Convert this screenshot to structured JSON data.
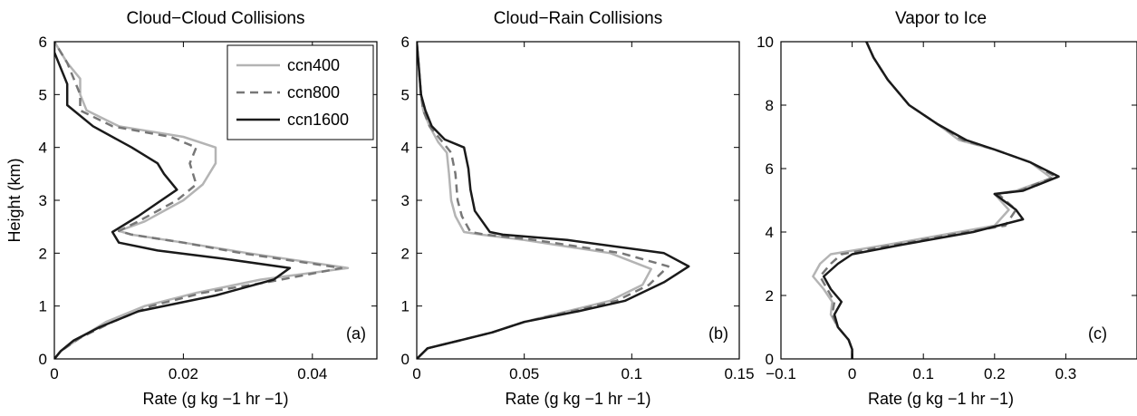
{
  "series_styles": [
    {
      "name": "ccn400",
      "color": "#b4b4b4",
      "dash": "solid"
    },
    {
      "name": "ccn800",
      "color": "#777777",
      "dash": "dashed"
    },
    {
      "name": "ccn1600",
      "color": "#1a1a1a",
      "dash": "solid"
    }
  ],
  "chart_data": [
    {
      "type": "line",
      "title": "Cloud−Cloud Collisions",
      "xlabel": "Rate (g kg −1 hr −1)",
      "ylabel": "Height (km)",
      "xlim": [
        0,
        0.05
      ],
      "ylim": [
        0,
        6
      ],
      "xticks": [
        0,
        0.02,
        0.04
      ],
      "xtick_labels": [
        "0",
        "0.02",
        "0.04"
      ],
      "yticks": [
        0,
        1,
        2,
        3,
        4,
        5,
        6
      ],
      "ytick_labels": [
        "0",
        "1",
        "2",
        "3",
        "4",
        "5",
        "6"
      ],
      "panel_label": "(a)",
      "legend": {
        "position": "top-right",
        "entries": [
          "ccn400",
          "ccn800",
          "ccn1600"
        ]
      },
      "series": [
        {
          "name": "ccn400",
          "points": [
            [
              0.0,
              0.0
            ],
            [
              0.001,
              0.15
            ],
            [
              0.004,
              0.4
            ],
            [
              0.008,
              0.7
            ],
            [
              0.014,
              1.0
            ],
            [
              0.022,
              1.25
            ],
            [
              0.032,
              1.5
            ],
            [
              0.0455,
              1.72
            ],
            [
              0.03,
              2.0
            ],
            [
              0.02,
              2.2
            ],
            [
              0.012,
              2.35
            ],
            [
              0.01,
              2.42
            ],
            [
              0.014,
              2.6
            ],
            [
              0.02,
              3.0
            ],
            [
              0.023,
              3.3
            ],
            [
              0.025,
              3.7
            ],
            [
              0.025,
              4.0
            ],
            [
              0.02,
              4.2
            ],
            [
              0.01,
              4.4
            ],
            [
              0.005,
              4.7
            ],
            [
              0.004,
              5.0
            ],
            [
              0.004,
              5.3
            ],
            [
              0.002,
              5.6
            ],
            [
              0.001,
              5.8
            ],
            [
              0.0,
              6.0
            ]
          ]
        },
        {
          "name": "ccn800",
          "points": [
            [
              0.0,
              0.0
            ],
            [
              0.001,
              0.15
            ],
            [
              0.004,
              0.4
            ],
            [
              0.009,
              0.7
            ],
            [
              0.015,
              1.0
            ],
            [
              0.023,
              1.25
            ],
            [
              0.033,
              1.45
            ],
            [
              0.0445,
              1.72
            ],
            [
              0.029,
              2.0
            ],
            [
              0.02,
              2.2
            ],
            [
              0.012,
              2.35
            ],
            [
              0.01,
              2.42
            ],
            [
              0.013,
              2.6
            ],
            [
              0.019,
              3.0
            ],
            [
              0.022,
              3.3
            ],
            [
              0.021,
              3.7
            ],
            [
              0.022,
              4.0
            ],
            [
              0.018,
              4.2
            ],
            [
              0.009,
              4.4
            ],
            [
              0.004,
              4.7
            ],
            [
              0.004,
              5.0
            ],
            [
              0.003,
              5.3
            ],
            [
              0.002,
              5.6
            ],
            [
              0.001,
              5.8
            ],
            [
              0.0,
              6.0
            ]
          ]
        },
        {
          "name": "ccn1600",
          "points": [
            [
              0.0,
              0.0
            ],
            [
              0.001,
              0.15
            ],
            [
              0.003,
              0.35
            ],
            [
              0.007,
              0.6
            ],
            [
              0.013,
              0.9
            ],
            [
              0.025,
              1.2
            ],
            [
              0.034,
              1.5
            ],
            [
              0.0365,
              1.72
            ],
            [
              0.026,
              1.9
            ],
            [
              0.016,
              2.05
            ],
            [
              0.01,
              2.2
            ],
            [
              0.009,
              2.4
            ],
            [
              0.013,
              2.7
            ],
            [
              0.016,
              2.95
            ],
            [
              0.019,
              3.2
            ],
            [
              0.017,
              3.5
            ],
            [
              0.016,
              3.7
            ],
            [
              0.012,
              4.0
            ],
            [
              0.006,
              4.4
            ],
            [
              0.002,
              4.8
            ],
            [
              0.002,
              5.0
            ],
            [
              0.002,
              5.2
            ],
            [
              0.001,
              5.5
            ],
            [
              0.0,
              5.8
            ],
            [
              0.0,
              6.0
            ]
          ]
        }
      ]
    },
    {
      "type": "line",
      "title": "Cloud−Rain Collisions",
      "xlabel": "Rate (g kg −1 hr −1)",
      "ylabel": "",
      "xlim": [
        0,
        0.15
      ],
      "ylim": [
        0,
        6
      ],
      "xticks": [
        0,
        0.05,
        0.1,
        0.15
      ],
      "xtick_labels": [
        "0",
        "0.05",
        "0.1",
        "0.15"
      ],
      "yticks": [
        0,
        1,
        2,
        3,
        4,
        5,
        6
      ],
      "ytick_labels": [
        "0",
        "1",
        "2",
        "3",
        "4",
        "5",
        "6"
      ],
      "panel_label": "(b)",
      "series": [
        {
          "name": "ccn400",
          "points": [
            [
              0.0,
              0.0
            ],
            [
              0.005,
              0.2
            ],
            [
              0.02,
              0.35
            ],
            [
              0.035,
              0.5
            ],
            [
              0.05,
              0.7
            ],
            [
              0.07,
              0.9
            ],
            [
              0.09,
              1.1
            ],
            [
              0.105,
              1.4
            ],
            [
              0.109,
              1.7
            ],
            [
              0.09,
              2.0
            ],
            [
              0.05,
              2.25
            ],
            [
              0.03,
              2.35
            ],
            [
              0.022,
              2.4
            ],
            [
              0.018,
              2.7
            ],
            [
              0.016,
              3.0
            ],
            [
              0.015,
              3.5
            ],
            [
              0.014,
              3.9
            ],
            [
              0.01,
              4.1
            ],
            [
              0.006,
              4.4
            ],
            [
              0.003,
              4.7
            ],
            [
              0.002,
              5.0
            ],
            [
              0.001,
              5.5
            ],
            [
              0.0,
              6.0
            ]
          ]
        },
        {
          "name": "ccn800",
          "points": [
            [
              0.0,
              0.0
            ],
            [
              0.005,
              0.2
            ],
            [
              0.02,
              0.35
            ],
            [
              0.035,
              0.5
            ],
            [
              0.05,
              0.7
            ],
            [
              0.072,
              0.9
            ],
            [
              0.093,
              1.1
            ],
            [
              0.108,
              1.4
            ],
            [
              0.117,
              1.75
            ],
            [
              0.095,
              2.0
            ],
            [
              0.055,
              2.25
            ],
            [
              0.032,
              2.35
            ],
            [
              0.025,
              2.4
            ],
            [
              0.021,
              2.7
            ],
            [
              0.019,
              3.0
            ],
            [
              0.018,
              3.5
            ],
            [
              0.016,
              3.9
            ],
            [
              0.012,
              4.1
            ],
            [
              0.006,
              4.4
            ],
            [
              0.003,
              4.7
            ],
            [
              0.002,
              5.0
            ],
            [
              0.001,
              5.5
            ],
            [
              0.0,
              6.0
            ]
          ]
        },
        {
          "name": "ccn1600",
          "points": [
            [
              0.0,
              0.0
            ],
            [
              0.005,
              0.2
            ],
            [
              0.02,
              0.35
            ],
            [
              0.035,
              0.5
            ],
            [
              0.05,
              0.7
            ],
            [
              0.075,
              0.9
            ],
            [
              0.097,
              1.1
            ],
            [
              0.115,
              1.45
            ],
            [
              0.1265,
              1.75
            ],
            [
              0.115,
              2.0
            ],
            [
              0.07,
              2.25
            ],
            [
              0.04,
              2.35
            ],
            [
              0.034,
              2.4
            ],
            [
              0.027,
              2.8
            ],
            [
              0.025,
              3.2
            ],
            [
              0.024,
              3.6
            ],
            [
              0.022,
              4.0
            ],
            [
              0.013,
              4.15
            ],
            [
              0.007,
              4.4
            ],
            [
              0.004,
              4.7
            ],
            [
              0.002,
              5.0
            ],
            [
              0.001,
              5.5
            ],
            [
              0.0,
              6.0
            ]
          ]
        }
      ]
    },
    {
      "type": "line",
      "title": "Vapor to Ice",
      "xlabel": "Rate (g kg −1 hr −1)",
      "ylabel": "",
      "xlim": [
        -0.1,
        0.4
      ],
      "ylim": [
        0,
        10
      ],
      "xticks": [
        -0.1,
        0,
        0.1,
        0.2,
        0.3
      ],
      "xtick_labels": [
        "−0.1",
        "0",
        "0.1",
        "0.2",
        "0.3"
      ],
      "yticks": [
        0,
        2,
        4,
        6,
        8,
        10
      ],
      "ytick_labels": [
        "0",
        "2",
        "4",
        "6",
        "8",
        "10"
      ],
      "panel_label": "(c)",
      "series": [
        {
          "name": "ccn400",
          "points": [
            [
              0.0,
              0.0
            ],
            [
              0.0,
              0.3
            ],
            [
              -0.005,
              0.6
            ],
            [
              -0.02,
              1.0
            ],
            [
              -0.03,
              1.4
            ],
            [
              -0.028,
              1.8
            ],
            [
              -0.04,
              2.2
            ],
            [
              -0.055,
              2.6
            ],
            [
              -0.045,
              3.0
            ],
            [
              -0.03,
              3.3
            ],
            [
              0.05,
              3.6
            ],
            [
              0.15,
              4.0
            ],
            [
              0.2,
              4.2
            ],
            [
              0.22,
              4.7
            ],
            [
              0.2,
              5.2
            ],
            [
              0.23,
              5.3
            ],
            [
              0.28,
              5.7
            ],
            [
              0.25,
              6.2
            ],
            [
              0.2,
              6.6
            ],
            [
              0.15,
              6.9
            ],
            [
              0.12,
              7.4
            ],
            [
              0.08,
              8.0
            ],
            [
              0.05,
              8.8
            ],
            [
              0.03,
              9.5
            ],
            [
              0.02,
              10.0
            ]
          ]
        },
        {
          "name": "ccn800",
          "points": [
            [
              0.0,
              0.0
            ],
            [
              0.0,
              0.3
            ],
            [
              -0.005,
              0.6
            ],
            [
              -0.02,
              1.0
            ],
            [
              -0.028,
              1.4
            ],
            [
              -0.025,
              1.8
            ],
            [
              -0.035,
              2.2
            ],
            [
              -0.045,
              2.6
            ],
            [
              -0.03,
              3.0
            ],
            [
              -0.015,
              3.3
            ],
            [
              0.06,
              3.6
            ],
            [
              0.16,
              4.0
            ],
            [
              0.215,
              4.2
            ],
            [
              0.23,
              4.7
            ],
            [
              0.205,
              5.2
            ],
            [
              0.235,
              5.3
            ],
            [
              0.285,
              5.75
            ],
            [
              0.25,
              6.2
            ],
            [
              0.2,
              6.6
            ],
            [
              0.155,
              6.9
            ],
            [
              0.12,
              7.4
            ],
            [
              0.08,
              8.0
            ],
            [
              0.05,
              8.8
            ],
            [
              0.03,
              9.5
            ],
            [
              0.02,
              10.0
            ]
          ]
        },
        {
          "name": "ccn1600",
          "points": [
            [
              0.0,
              0.0
            ],
            [
              0.0,
              0.3
            ],
            [
              -0.005,
              0.6
            ],
            [
              -0.02,
              1.0
            ],
            [
              -0.025,
              1.4
            ],
            [
              -0.015,
              1.8
            ],
            [
              -0.03,
              2.2
            ],
            [
              -0.04,
              2.6
            ],
            [
              -0.02,
              3.0
            ],
            [
              0.0,
              3.3
            ],
            [
              0.07,
              3.6
            ],
            [
              0.17,
              4.0
            ],
            [
              0.24,
              4.4
            ],
            [
              0.23,
              4.7
            ],
            [
              0.2,
              5.2
            ],
            [
              0.24,
              5.3
            ],
            [
              0.29,
              5.75
            ],
            [
              0.25,
              6.2
            ],
            [
              0.2,
              6.6
            ],
            [
              0.16,
              6.9
            ],
            [
              0.12,
              7.4
            ],
            [
              0.08,
              8.0
            ],
            [
              0.05,
              8.8
            ],
            [
              0.03,
              9.5
            ],
            [
              0.02,
              10.0
            ]
          ]
        }
      ]
    }
  ]
}
